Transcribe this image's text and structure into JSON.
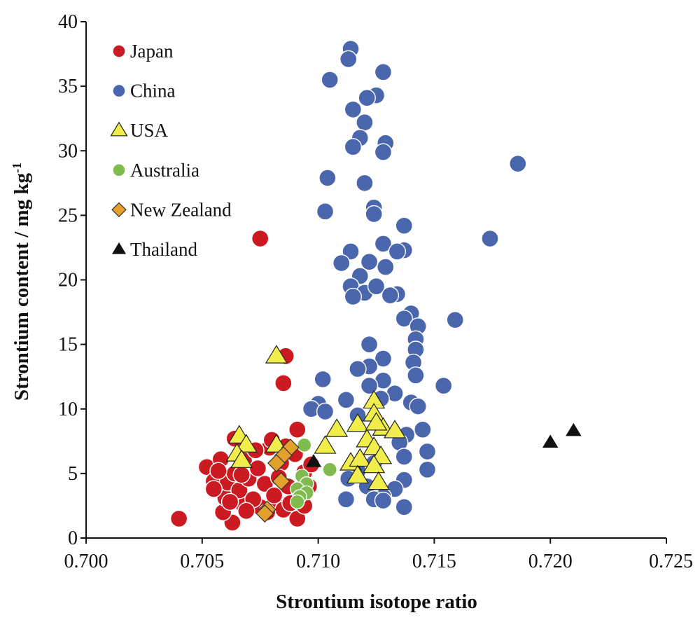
{
  "chart_data": {
    "type": "scatter",
    "xlabel": "Strontium isotope ratio",
    "ylabel": "Strontium content / mg kg",
    "ylabel_sup": "-1",
    "xlim": [
      0.7,
      0.725
    ],
    "ylim": [
      0,
      40
    ],
    "x_ticks": [
      "0.700",
      "0.705",
      "0.710",
      "0.715",
      "0.720",
      "0.725"
    ],
    "y_ticks": [
      "0",
      "5",
      "10",
      "15",
      "20",
      "25",
      "30",
      "35",
      "40"
    ],
    "grid": false,
    "legend_position": "top-left",
    "series": [
      {
        "name": "Japan",
        "marker": "circle",
        "color": "#cc1a22",
        "points": [
          [
            0.704,
            1.5
          ],
          [
            0.7063,
            1.2
          ],
          [
            0.7059,
            2.0
          ],
          [
            0.7068,
            2.5
          ],
          [
            0.7075,
            2.4
          ],
          [
            0.7082,
            2.5
          ],
          [
            0.7091,
            1.5
          ],
          [
            0.7085,
            2.2
          ],
          [
            0.7052,
            5.5
          ],
          [
            0.7055,
            4.4
          ],
          [
            0.7058,
            6.1
          ],
          [
            0.706,
            3.1
          ],
          [
            0.7061,
            4.3
          ],
          [
            0.7064,
            5.0
          ],
          [
            0.7066,
            3.7
          ],
          [
            0.7068,
            6.0
          ],
          [
            0.707,
            4.6
          ],
          [
            0.7072,
            3.0
          ],
          [
            0.7074,
            5.4
          ],
          [
            0.7077,
            4.2
          ],
          [
            0.7079,
            7.0
          ],
          [
            0.7081,
            3.3
          ],
          [
            0.7084,
            5.8
          ],
          [
            0.7087,
            4.0
          ],
          [
            0.709,
            6.5
          ],
          [
            0.7092,
            3.2
          ],
          [
            0.7094,
            5.1
          ],
          [
            0.7096,
            4.0
          ],
          [
            0.7086,
            7.1
          ],
          [
            0.7064,
            7.7
          ],
          [
            0.7073,
            6.8
          ],
          [
            0.708,
            7.6
          ],
          [
            0.7091,
            8.4
          ],
          [
            0.7055,
            3.8
          ],
          [
            0.7062,
            2.8
          ],
          [
            0.7069,
            2.1
          ],
          [
            0.7078,
            2.0
          ],
          [
            0.7088,
            2.7
          ],
          [
            0.7094,
            2.5
          ],
          [
            0.7057,
            5.2
          ],
          [
            0.7067,
            4.9
          ],
          [
            0.7083,
            4.7
          ],
          [
            0.7097,
            5.7
          ],
          [
            0.7075,
            23.2
          ],
          [
            0.7086,
            14.1
          ],
          [
            0.7085,
            12.0
          ]
        ]
      },
      {
        "name": "China",
        "marker": "circle",
        "color": "#4a66ad",
        "points": [
          [
            0.7114,
            37.9
          ],
          [
            0.7113,
            37.1
          ],
          [
            0.7128,
            36.1
          ],
          [
            0.7105,
            35.5
          ],
          [
            0.7125,
            34.3
          ],
          [
            0.7121,
            34.1
          ],
          [
            0.7115,
            33.2
          ],
          [
            0.712,
            32.2
          ],
          [
            0.7129,
            30.6
          ],
          [
            0.7118,
            31.0
          ],
          [
            0.7115,
            30.3
          ],
          [
            0.7128,
            29.9
          ],
          [
            0.7186,
            29.0
          ],
          [
            0.7104,
            27.9
          ],
          [
            0.712,
            27.5
          ],
          [
            0.7124,
            25.6
          ],
          [
            0.7103,
            25.3
          ],
          [
            0.7124,
            25.1
          ],
          [
            0.7137,
            24.2
          ],
          [
            0.7174,
            23.2
          ],
          [
            0.7128,
            22.8
          ],
          [
            0.7114,
            22.2
          ],
          [
            0.7137,
            22.3
          ],
          [
            0.7134,
            22.2
          ],
          [
            0.711,
            21.3
          ],
          [
            0.7122,
            21.4
          ],
          [
            0.7129,
            21.0
          ],
          [
            0.7118,
            20.3
          ],
          [
            0.7114,
            19.5
          ],
          [
            0.712,
            19.0
          ],
          [
            0.7125,
            19.5
          ],
          [
            0.7115,
            18.7
          ],
          [
            0.7134,
            18.9
          ],
          [
            0.7131,
            18.8
          ],
          [
            0.714,
            17.4
          ],
          [
            0.7137,
            17.0
          ],
          [
            0.7159,
            16.9
          ],
          [
            0.7143,
            16.4
          ],
          [
            0.7142,
            15.4
          ],
          [
            0.7142,
            14.6
          ],
          [
            0.7122,
            15.0
          ],
          [
            0.7141,
            13.6
          ],
          [
            0.7128,
            13.9
          ],
          [
            0.7122,
            13.3
          ],
          [
            0.7117,
            13.1
          ],
          [
            0.7142,
            12.6
          ],
          [
            0.7154,
            11.8
          ],
          [
            0.7102,
            12.3
          ],
          [
            0.7128,
            12.2
          ],
          [
            0.7122,
            11.8
          ],
          [
            0.7133,
            11.2
          ],
          [
            0.7127,
            10.8
          ],
          [
            0.7112,
            10.7
          ],
          [
            0.71,
            10.4
          ],
          [
            0.7097,
            10.0
          ],
          [
            0.7103,
            9.8
          ],
          [
            0.714,
            10.5
          ],
          [
            0.7143,
            10.2
          ],
          [
            0.7117,
            9.5
          ],
          [
            0.7145,
            8.4
          ],
          [
            0.7138,
            8.0
          ],
          [
            0.7135,
            7.4
          ],
          [
            0.7147,
            6.7
          ],
          [
            0.7137,
            6.3
          ],
          [
            0.7124,
            5.8
          ],
          [
            0.7117,
            5.2
          ],
          [
            0.7113,
            4.6
          ],
          [
            0.7147,
            5.3
          ],
          [
            0.7121,
            4.0
          ],
          [
            0.7137,
            4.5
          ],
          [
            0.7133,
            3.8
          ],
          [
            0.7128,
            3.2
          ],
          [
            0.7124,
            3.0
          ],
          [
            0.7112,
            3.0
          ],
          [
            0.7128,
            2.9
          ],
          [
            0.7137,
            2.4
          ]
        ]
      },
      {
        "name": "USA",
        "marker": "triangle",
        "color": "#f1ee4c",
        "points": [
          [
            0.7082,
            14.1
          ],
          [
            0.7124,
            10.6
          ],
          [
            0.7124,
            9.6
          ],
          [
            0.7117,
            8.8
          ],
          [
            0.7128,
            8.5
          ],
          [
            0.7133,
            8.3
          ],
          [
            0.7108,
            8.4
          ],
          [
            0.7121,
            7.6
          ],
          [
            0.7066,
            7.9
          ],
          [
            0.7069,
            7.2
          ],
          [
            0.7082,
            7.2
          ],
          [
            0.7103,
            7.1
          ],
          [
            0.7065,
            6.5
          ],
          [
            0.7067,
            6.0
          ],
          [
            0.7124,
            7.0
          ],
          [
            0.7127,
            6.3
          ],
          [
            0.7114,
            5.8
          ],
          [
            0.7118,
            6.1
          ],
          [
            0.7124,
            5.6
          ],
          [
            0.7117,
            4.8
          ],
          [
            0.7126,
            4.3
          ],
          [
            0.7125,
            8.9
          ]
        ]
      },
      {
        "name": "Australia",
        "marker": "circle",
        "color": "#7fbb4f",
        "points": [
          [
            0.7094,
            7.2
          ],
          [
            0.7105,
            5.3
          ],
          [
            0.7093,
            4.8
          ],
          [
            0.7095,
            4.2
          ],
          [
            0.7091,
            3.8
          ],
          [
            0.7095,
            3.5
          ],
          [
            0.7092,
            3.2
          ],
          [
            0.7091,
            2.8
          ]
        ]
      },
      {
        "name": "New Zealand",
        "marker": "diamond",
        "color": "#e3a12c",
        "points": [
          [
            0.7088,
            7.0
          ],
          [
            0.7085,
            6.4
          ],
          [
            0.7082,
            5.8
          ],
          [
            0.7084,
            4.4
          ],
          [
            0.7078,
            2.2
          ],
          [
            0.7077,
            1.9
          ]
        ]
      },
      {
        "name": "Thailand",
        "marker": "triangle",
        "color": "#111111",
        "points": [
          [
            0.7098,
            5.9
          ],
          [
            0.72,
            7.4
          ],
          [
            0.721,
            8.3
          ]
        ]
      }
    ]
  }
}
